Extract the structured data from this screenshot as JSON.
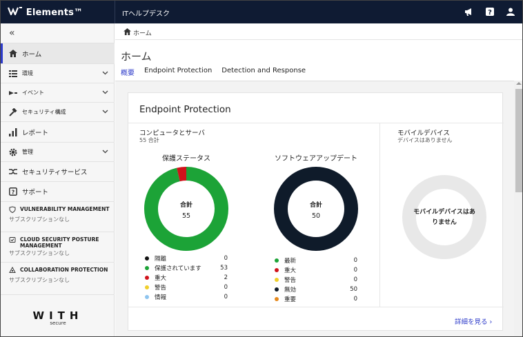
{
  "header": {
    "brand": "Elements™",
    "app_title": "ITヘルプデスク"
  },
  "breadcrumb": {
    "home": "ホーム"
  },
  "sidebar": {
    "items": [
      {
        "label": "ホーム"
      },
      {
        "label": "環境"
      },
      {
        "label": "イベント"
      },
      {
        "label": "セキュリティ構成"
      },
      {
        "label": "レポート"
      },
      {
        "label": "管理"
      },
      {
        "label": "セキュリティサービス"
      },
      {
        "label": "サポート"
      }
    ],
    "services": [
      {
        "name": "VULNERABILITY MANAGEMENT",
        "status": "サブスクリプションなし"
      },
      {
        "name": "CLOUD SECURITY POSTURE MANAGEMENT",
        "status": "サブスクリプションなし"
      },
      {
        "name": "COLLABORATION PROTECTION",
        "status": "サブスクリプションなし"
      }
    ],
    "logo": {
      "mark": "WITH",
      "sub": "secure"
    }
  },
  "page": {
    "title": "ホーム",
    "tabs": [
      {
        "label": "概要"
      },
      {
        "label": "Endpoint Protection"
      },
      {
        "label": "Detection and Response"
      }
    ]
  },
  "card": {
    "title": "Endpoint Protection",
    "computers": {
      "title": "コンピュータとサーバ",
      "subtitle": "55 合計",
      "protection": {
        "title": "保護ステータス",
        "center_label": "合計",
        "center_value": "55",
        "legend": [
          {
            "label": "隔離",
            "value": "0",
            "color": "#111111"
          },
          {
            "label": "保護されています",
            "value": "53",
            "color": "#1ca337"
          },
          {
            "label": "重大",
            "value": "2",
            "color": "#d0121b"
          },
          {
            "label": "警告",
            "value": "0",
            "color": "#f0cf2b"
          },
          {
            "label": "情報",
            "value": "0",
            "color": "#8ec4ef"
          }
        ]
      },
      "software": {
        "title": "ソフトウェアアップデート",
        "center_label": "合計",
        "center_value": "50",
        "legend": [
          {
            "label": "最新",
            "value": "0",
            "color": "#1ca337"
          },
          {
            "label": "重大",
            "value": "0",
            "color": "#d0121b"
          },
          {
            "label": "警告",
            "value": "0",
            "color": "#f0cf2b"
          },
          {
            "label": "無効",
            "value": "50",
            "color": "#0f1b2a"
          },
          {
            "label": "重要",
            "value": "0",
            "color": "#e58a1f"
          }
        ]
      }
    },
    "mobile": {
      "title": "モバイルデバイス",
      "subtitle": "デバイスはありません",
      "center_text": "モバイルデバイスはありません"
    },
    "more_link": "詳細を見る ›"
  },
  "colors": {
    "accent": "#2c3ac9",
    "topbar": "#0f1b33"
  }
}
